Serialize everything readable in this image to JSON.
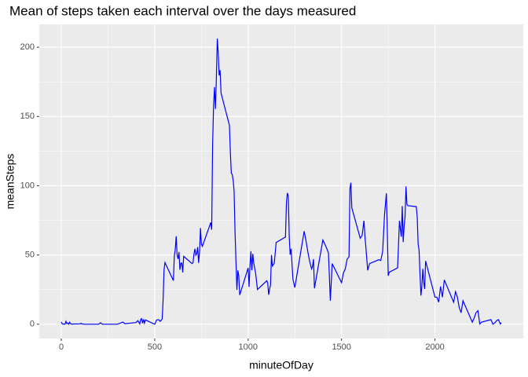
{
  "chart_data": {
    "type": "line",
    "title": "Mean of steps taken each interval over the days measured",
    "x_label": "minuteOfDay",
    "y_label": "meanSteps",
    "x": [
      0,
      5,
      10,
      15,
      20,
      25,
      30,
      35,
      40,
      45,
      50,
      55,
      100,
      105,
      110,
      115,
      120,
      200,
      210,
      220,
      230,
      300,
      330,
      340,
      400,
      410,
      420,
      425,
      430,
      435,
      440,
      445,
      450,
      500,
      510,
      520,
      530,
      540,
      545,
      550,
      555,
      600,
      605,
      610,
      615,
      620,
      625,
      630,
      635,
      640,
      645,
      650,
      655,
      700,
      705,
      710,
      715,
      720,
      725,
      730,
      735,
      740,
      745,
      750,
      755,
      800,
      805,
      810,
      815,
      820,
      825,
      830,
      835,
      840,
      845,
      850,
      855,
      900,
      905,
      910,
      915,
      920,
      925,
      930,
      935,
      940,
      945,
      950,
      955,
      1000,
      1005,
      1010,
      1015,
      1020,
      1025,
      1030,
      1040,
      1050,
      1100,
      1105,
      1110,
      1115,
      1120,
      1125,
      1130,
      1140,
      1150,
      1200,
      1205,
      1210,
      1215,
      1220,
      1225,
      1230,
      1240,
      1250,
      1300,
      1310,
      1320,
      1330,
      1340,
      1345,
      1350,
      1355,
      1400,
      1410,
      1420,
      1430,
      1440,
      1450,
      1500,
      1510,
      1520,
      1530,
      1540,
      1545,
      1550,
      1555,
      1600,
      1610,
      1620,
      1625,
      1630,
      1640,
      1650,
      1700,
      1710,
      1720,
      1730,
      1740,
      1745,
      1750,
      1755,
      1800,
      1810,
      1820,
      1825,
      1830,
      1835,
      1840,
      1845,
      1850,
      1855,
      1900,
      1905,
      1910,
      1915,
      1920,
      1925,
      1930,
      1935,
      1940,
      1945,
      1950,
      2000,
      2010,
      2020,
      2030,
      2040,
      2050,
      2100,
      2110,
      2120,
      2130,
      2140,
      2150,
      2200,
      2210,
      2220,
      2230,
      2240,
      2250,
      2300,
      2310,
      2320,
      2330,
      2340,
      2350,
      2355
    ],
    "series": [
      {
        "name": "meanSteps",
        "color": "#0000ff",
        "values": [
          1.7,
          0.3,
          0.1,
          0.2,
          0.1,
          2.1,
          0.5,
          0.9,
          0,
          1.5,
          0.4,
          0.1,
          0.3,
          0.7,
          0.2,
          0.3,
          0,
          0,
          1.1,
          0,
          0,
          0,
          1.6,
          0.4,
          1.2,
          2.6,
          0.3,
          3.5,
          4.1,
          0.7,
          3.5,
          0.8,
          3.1,
          0,
          3,
          3.3,
          2.1,
          3.7,
          17.5,
          39.5,
          44.5,
          31.5,
          49.3,
          53.8,
          63.5,
          50,
          47.1,
          52.2,
          39.3,
          44,
          44.2,
          37.4,
          49,
          43.8,
          44.4,
          50.5,
          54.5,
          49.9,
          50.9,
          55.7,
          44.3,
          52.3,
          69.5,
          57.8,
          56.2,
          73.4,
          68.2,
          129.4,
          157.5,
          171.2,
          155.4,
          177.3,
          206.2,
          195.9,
          179.6,
          183.4,
          167,
          143.5,
          124,
          109.1,
          108.1,
          103.7,
          95.97,
          66.2,
          45.2,
          24.8,
          38.8,
          35,
          21.1,
          40.6,
          27,
          42.4,
          52.7,
          38.9,
          50.8,
          44.3,
          37,
          25.1,
          31.4,
          29.7,
          21.3,
          25.5,
          28.4,
          50,
          42,
          44,
          59,
          63,
          87.6,
          94.8,
          92.8,
          63.4,
          50.2,
          54.5,
          32.4,
          26.5,
          67.2,
          60,
          52,
          45,
          40,
          42,
          47,
          26,
          60.8,
          58,
          55,
          51.5,
          17,
          43.8,
          30,
          37,
          40,
          47,
          48.7,
          98,
          102.1,
          84,
          62.1,
          64.1,
          74.7,
          63.9,
          56,
          38.9,
          43.8,
          46.6,
          46,
          52.5,
          78.9,
          94.5,
          66.7,
          35,
          37.5,
          40.7,
          74.7,
          63.2,
          85.3,
          59.3,
          70.8,
          77.8,
          99.5,
          86.6,
          85.6,
          84.9,
          77.8,
          58,
          53.4,
          36.3,
          20.7,
          27.4,
          40,
          30.2,
          25.5,
          45.7,
          19.6,
          19.5,
          16,
          27.3,
          19.5,
          32,
          15.9,
          23.5,
          19.6,
          12,
          8.3,
          17,
          1.5,
          4.6,
          8.4,
          9.8,
          0.2,
          1.6,
          3.3,
          0,
          1,
          2.6,
          3.3,
          0.2,
          1.1
        ]
      }
    ],
    "xlim": [
      -117.75,
      2472.75
    ],
    "xticks": [
      0,
      500,
      1000,
      1500,
      2000
    ],
    "ylim": [
      -10.3,
      216.5
    ],
    "yticks": [
      0,
      50,
      100,
      150,
      200
    ],
    "grid": true
  }
}
